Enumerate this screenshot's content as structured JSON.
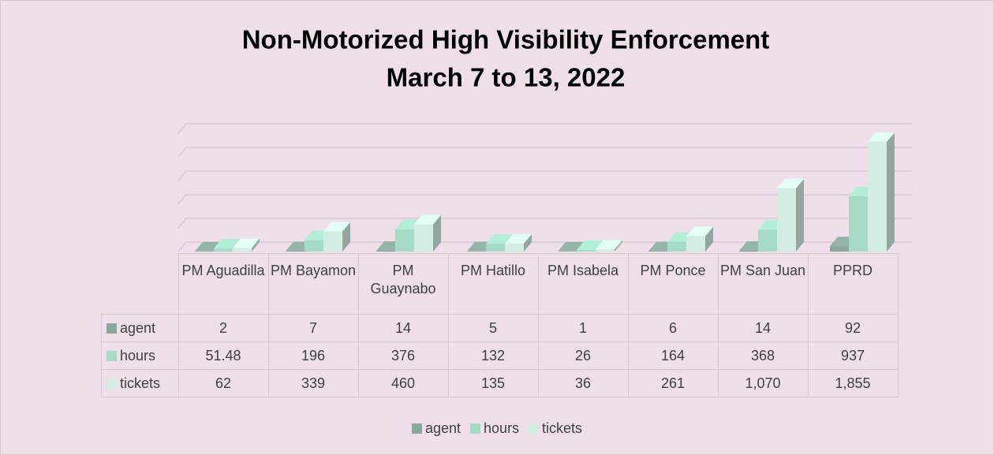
{
  "chart_data": {
    "type": "bar3d",
    "title": "Non-Motorized High Visibility Enforcement",
    "subtitle": "March 7 to 13, 2022",
    "categories": [
      "PM Aguadilla",
      "PM Bayamon",
      "PM Guaynabo",
      "PM Hatillo",
      "PM Isabela",
      "PM Ponce",
      "PM San Juan",
      "PPRD"
    ],
    "series": [
      {
        "name": "agent",
        "color": "#8aa89c",
        "values": [
          2,
          7,
          14,
          5,
          1,
          6,
          14,
          92
        ]
      },
      {
        "name": "hours",
        "color": "#a6dcc6",
        "values": [
          51.48,
          196,
          376,
          132,
          26,
          164,
          368,
          937
        ]
      },
      {
        "name": "tickets",
        "color": "#d3ede3",
        "values": [
          62,
          339,
          460,
          135,
          36,
          261,
          1070,
          1855
        ],
        "value_labels": [
          "62",
          "339",
          "460",
          "135",
          "36",
          "261",
          "1,070",
          "1,855"
        ]
      }
    ],
    "ylim": [
      0,
      2000
    ],
    "yticks": [
      0,
      400,
      800,
      1200,
      1600,
      2000
    ],
    "grid": true,
    "tick_labels": false,
    "data_table": true,
    "legend": "bottom"
  }
}
